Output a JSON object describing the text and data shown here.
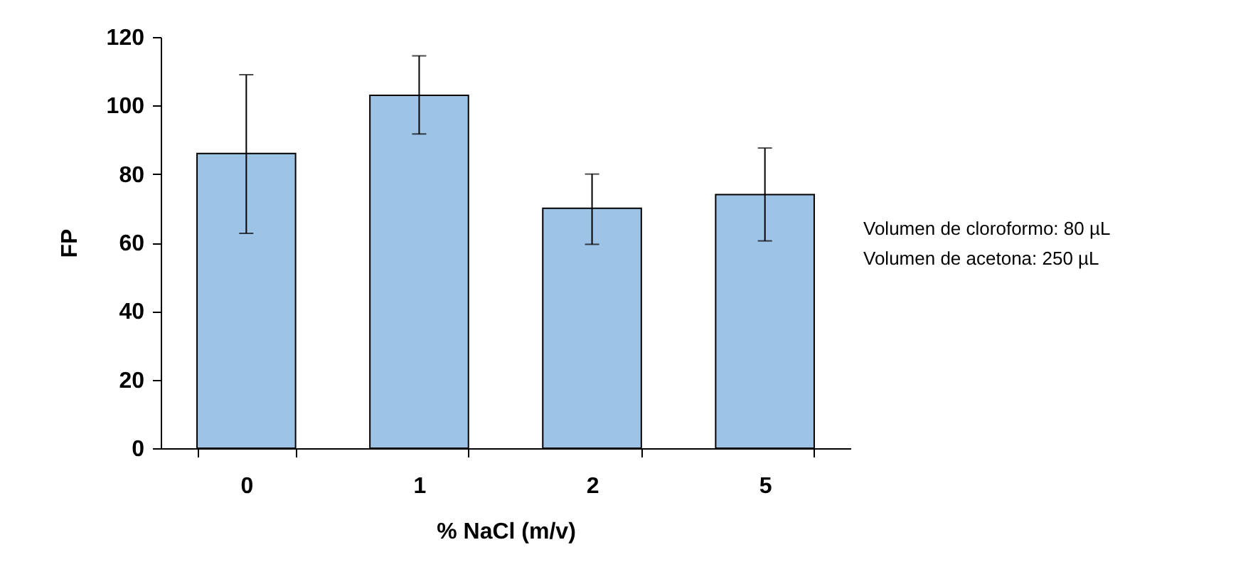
{
  "chart_data": {
    "type": "bar",
    "xlabel": "% NaCl (m/v)",
    "ylabel": "FP",
    "categories": [
      "0",
      "1",
      "2",
      "5"
    ],
    "values": [
      86,
      103,
      70,
      74
    ],
    "errors": [
      [
        62.7,
        109
      ],
      [
        91.7,
        114.5
      ],
      [
        59.5,
        80
      ],
      [
        60.5,
        87.6
      ]
    ],
    "color": "#9dc3e6",
    "ylim": [
      0,
      120
    ],
    "yticks": [
      0,
      20,
      40,
      60,
      80,
      100,
      120
    ],
    "grid": false,
    "annotations": [
      "Volumen de cloroformo: 80 µL",
      "Volumen de acetona: 250 µL"
    ]
  }
}
